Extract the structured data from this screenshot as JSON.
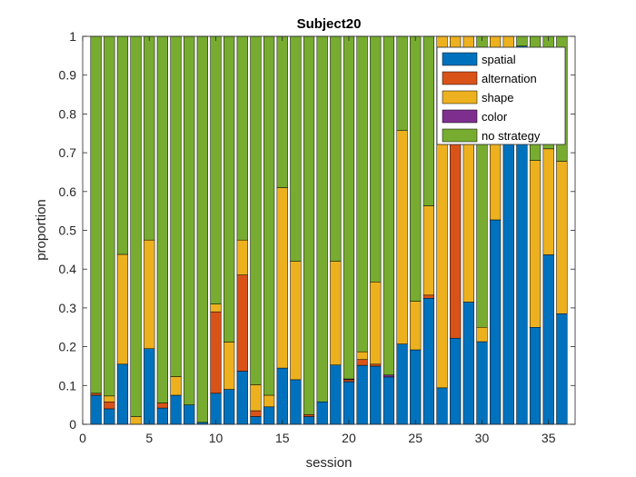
{
  "chart_data": {
    "type": "bar",
    "stacked": true,
    "title": "Subject20",
    "xlabel": "session",
    "ylabel": "proportion",
    "xlim": [
      0,
      37
    ],
    "ylim": [
      0,
      1
    ],
    "xticks": [
      0,
      5,
      10,
      15,
      20,
      25,
      30,
      35
    ],
    "yticks": [
      0,
      0.1,
      0.2,
      0.3,
      0.4,
      0.5,
      0.6,
      0.7,
      0.8,
      0.9,
      1
    ],
    "grid": false,
    "legend_position": "top-right",
    "x": [
      1,
      2,
      3,
      4,
      5,
      6,
      7,
      8,
      9,
      10,
      11,
      12,
      13,
      14,
      15,
      16,
      17,
      18,
      19,
      20,
      21,
      22,
      23,
      24,
      25,
      26,
      27,
      28,
      29,
      30,
      31,
      32,
      33,
      34,
      35,
      36
    ],
    "series": [
      {
        "name": "spatial",
        "color": "#0072BD",
        "values": [
          0.075,
          0.04,
          0.155,
          0.0,
          0.195,
          0.042,
          0.075,
          0.05,
          0.005,
          0.08,
          0.09,
          0.137,
          0.02,
          0.045,
          0.145,
          0.115,
          0.02,
          0.058,
          0.153,
          0.11,
          0.152,
          0.15,
          0.122,
          0.207,
          0.192,
          0.325,
          0.094,
          0.222,
          0.315,
          0.213,
          0.527,
          0.81,
          0.975,
          0.25,
          0.437,
          0.285
        ]
      },
      {
        "name": "alternation",
        "color": "#D95319",
        "values": [
          0.005,
          0.018,
          0.0,
          0.0,
          0.0,
          0.013,
          0.0,
          0.0,
          0.0,
          0.21,
          0.0,
          0.248,
          0.015,
          0.0,
          0.0,
          0.0,
          0.005,
          0.0,
          0.0,
          0.005,
          0.015,
          0.005,
          0.0,
          0.0,
          0.0,
          0.008,
          0.0,
          0.533,
          0.0,
          0.0,
          0.0,
          0.0,
          0.0,
          0.0,
          0.0,
          0.0
        ]
      },
      {
        "name": "shape",
        "color": "#EDB120",
        "values": [
          0.0,
          0.015,
          0.283,
          0.02,
          0.28,
          0.0,
          0.048,
          0.0,
          0.0,
          0.02,
          0.122,
          0.09,
          0.067,
          0.03,
          0.465,
          0.305,
          0.0,
          0.0,
          0.267,
          0.0,
          0.02,
          0.212,
          0.0,
          0.55,
          0.125,
          0.23,
          0.906,
          0.245,
          0.685,
          0.037,
          0.473,
          0.19,
          0.0,
          0.43,
          0.273,
          0.393
        ]
      },
      {
        "name": "color",
        "color": "#7E2F8E",
        "values": [
          0.0,
          0.0,
          0.0,
          0.0,
          0.0,
          0.0,
          0.0,
          0.0,
          0.0,
          0.0,
          0.0,
          0.0,
          0.0,
          0.0,
          0.0,
          0.0,
          0.0,
          0.0,
          0.0,
          0.002,
          0.0,
          0.0,
          0.005,
          0.0,
          0.0,
          0.0,
          0.0,
          0.0,
          0.0,
          0.0,
          0.0,
          0.0,
          0.0,
          0.0,
          0.0,
          0.0
        ]
      },
      {
        "name": "no strategy",
        "color": "#77AC30",
        "values": [
          0.92,
          0.927,
          0.562,
          0.98,
          0.525,
          0.945,
          0.877,
          0.95,
          0.995,
          0.69,
          0.788,
          0.525,
          0.898,
          0.925,
          0.39,
          0.58,
          0.975,
          0.942,
          0.58,
          0.883,
          0.813,
          0.633,
          0.873,
          0.243,
          0.683,
          0.437,
          0.0,
          0.0,
          0.0,
          0.75,
          0.0,
          0.0,
          0.025,
          0.32,
          0.29,
          0.322
        ]
      }
    ]
  }
}
